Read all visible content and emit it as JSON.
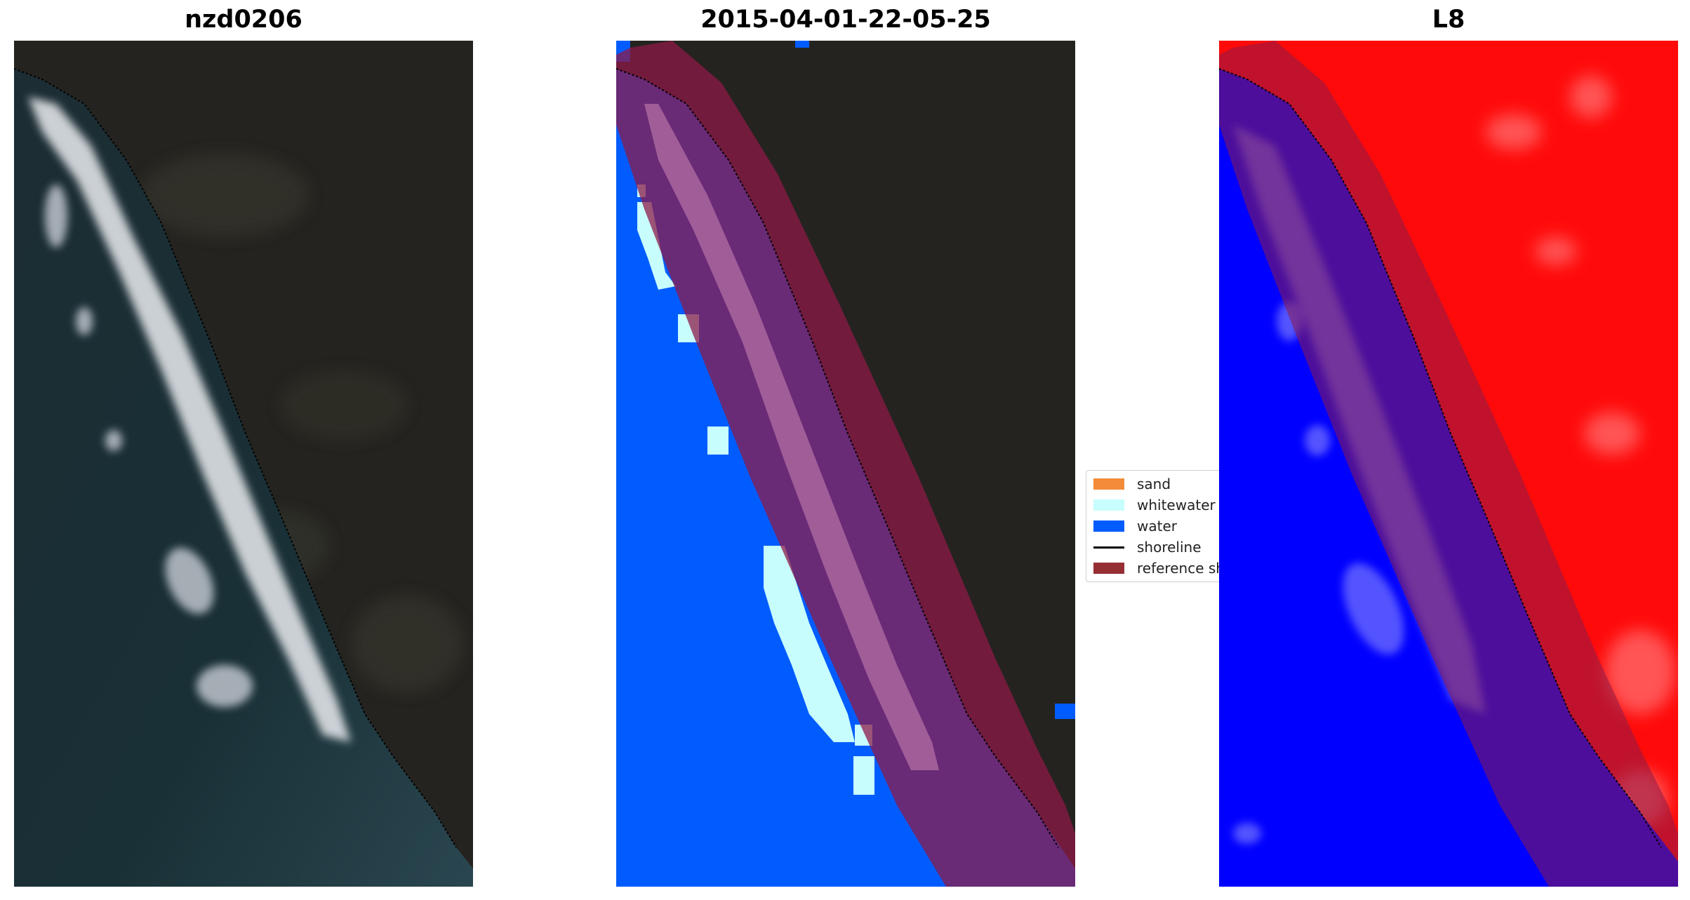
{
  "panels": [
    {
      "title": "nzd0206"
    },
    {
      "title": "2015-04-01-22-05-25"
    },
    {
      "title": "L8"
    }
  ],
  "legend": {
    "items": [
      {
        "label": "sand",
        "color": "#f28c3a"
      },
      {
        "label": "whitewater",
        "color": "#c8fdfd"
      },
      {
        "label": "water",
        "color": "#005cff"
      },
      {
        "label": "shoreline",
        "color": "#000000"
      },
      {
        "label": "reference shoreline buffer",
        "color": "#952f34"
      }
    ]
  },
  "colors": {
    "land_dark": "#26241f",
    "ocean_dark": "#1a2e33",
    "water_class": "#005cff",
    "buffer": "#7a1f3d",
    "mndwi_water": "#0000ff",
    "mndwi_land": "#ff0000"
  }
}
